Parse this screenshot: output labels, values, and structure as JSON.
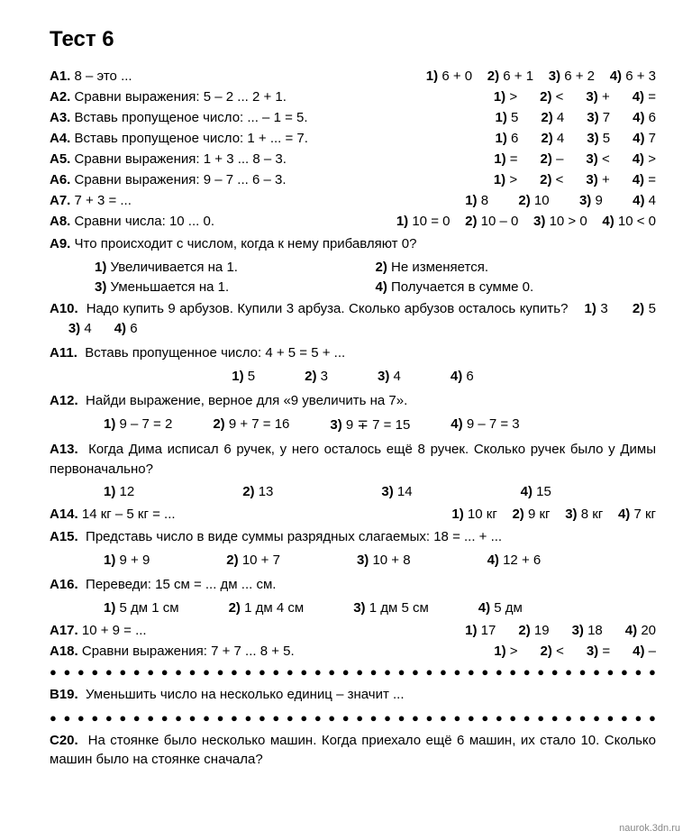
{
  "title": "Тест 6",
  "watermark": "naurok.3dn.ru",
  "dots": "● ● ● ● ● ● ● ● ● ● ● ● ● ● ● ● ● ● ● ● ● ● ● ● ● ● ● ● ● ● ● ● ● ● ● ● ● ● ● ● ● ● ● ● ● ● ● ● ● ● ●",
  "A1": {
    "label": "А1.",
    "text": "8 – это ...",
    "o1": "6 + 0",
    "o2": "6 + 1",
    "o3": "6 + 2",
    "o4": "6 + 3"
  },
  "A2": {
    "label": "А2.",
    "text": "Сравни выражения: 5 – 2 ... 2 + 1.",
    "o1": ">",
    "o2": "<",
    "o3": "+",
    "o4": "="
  },
  "A3": {
    "label": "А3.",
    "text": "Вставь пропущеное число: ... – 1 = 5.",
    "o1": "5",
    "o2": "4",
    "o3": "7",
    "o4": "6"
  },
  "A4": {
    "label": "А4.",
    "text": "Вставь пропущеное число: 1 + ... = 7.",
    "o1": "6",
    "o2": "4",
    "o3": "5",
    "o4": "7"
  },
  "A5": {
    "label": "А5.",
    "text": "Сравни выражения: 1 + 3 ... 8 – 3.",
    "o1": "=",
    "o2": "–",
    "o3": "<",
    "o4": ">"
  },
  "A6": {
    "label": "А6.",
    "text": "Сравни выражения: 9 – 7 ... 6 – 3.",
    "o1": ">",
    "o2": "<",
    "o3": "+",
    "o4": "="
  },
  "A7": {
    "label": "А7.",
    "text": "7 + 3 = ...",
    "o1": "8",
    "o2": "10",
    "o3": "9",
    "o4": "4"
  },
  "A8": {
    "label": "А8.",
    "text": "Сравни числа: 10 ... 0.",
    "o1": "10 = 0",
    "o2": "10 – 0",
    "o3": "10 > 0",
    "o4": "10 < 0"
  },
  "A9": {
    "label": "А9.",
    "text": "Что происходит с числом, когда к нему прибавляют 0?",
    "o1": "Увеличивается на 1.",
    "o2": "Не изменяется.",
    "o3": "Уменьшается на 1.",
    "o4": "Получается в сумме 0."
  },
  "A10": {
    "label": "А10.",
    "text": "Надо купить 9 арбузов. Купили 3 арбуза. Сколько арбузов осталось купить?",
    "o1": "3",
    "o2": "5",
    "o3": "4",
    "o4": "6"
  },
  "A11": {
    "label": "А11.",
    "text": "Вставь пропущенное число: 4 + 5 = 5 + ...",
    "o1": "5",
    "o2": "3",
    "o3": "4",
    "o4": "6"
  },
  "A12": {
    "label": "А12.",
    "text": "Найди выражение, верное для «9 увеличить на 7».",
    "o1": "9 – 7 = 2",
    "o2": "9 + 7 = 16",
    "o3": "9 ∓ 7 = 15",
    "o4": "9 – 7 = 3"
  },
  "A13": {
    "label": "А13.",
    "text": "Когда Дима исписал 6 ручек, у него осталось ещё 8 ручек. Сколько ручек было у Димы первоначально?",
    "o1": "12",
    "o2": "13",
    "o3": "14",
    "o4": "15"
  },
  "A14": {
    "label": "А14.",
    "text": "14 кг – 5 кг = ...",
    "o1": "10 кг",
    "o2": "9 кг",
    "o3": "8 кг",
    "o4": "7 кг"
  },
  "A15": {
    "label": "А15.",
    "text": "Представь число в виде суммы разрядных слагаемых: 18 = ... + ...",
    "o1": "9 + 9",
    "o2": "10 + 7",
    "o3": "10 + 8",
    "o4": "12 + 6"
  },
  "A16": {
    "label": "А16.",
    "text": "Переведи: 15 см = ... дм ... см.",
    "o1": "5 дм 1 см",
    "o2": "1 дм 4 см",
    "o3": "1 дм 5 см",
    "o4": "5 дм"
  },
  "A17": {
    "label": "А17.",
    "text": "10 + 9 = ...",
    "o1": "17",
    "o2": "19",
    "o3": "18",
    "o4": "20"
  },
  "A18": {
    "label": "А18.",
    "text": "Сравни выражения: 7 + 7 ... 8 + 5.",
    "o1": ">",
    "o2": "<",
    "o3": "=",
    "o4": "–"
  },
  "B19": {
    "label": "В19.",
    "text": "Уменьшить число на несколько единиц – значит ..."
  },
  "C20": {
    "label": "С20.",
    "text": "На стоянке было несколько машин. Когда приехало ещё 6 машин, их стало 10. Сколько машин было на стоянке сначала?"
  },
  "n1": "1)",
  "n2": "2)",
  "n3": "3)",
  "n4": "4)"
}
